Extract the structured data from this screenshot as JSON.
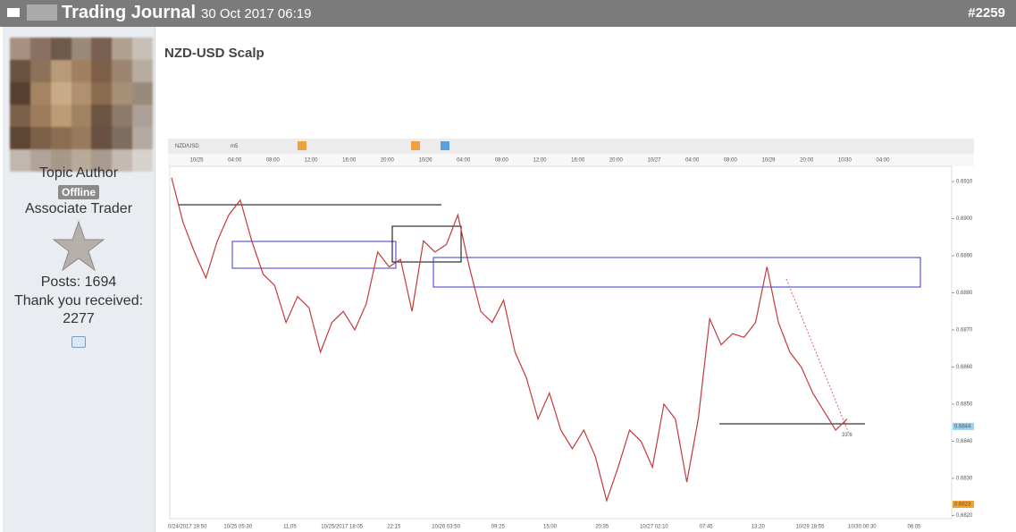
{
  "header": {
    "title": "Trading Journal",
    "date": "30 Oct 2017 06:19",
    "post_number": "#2259"
  },
  "author": {
    "role": "Topic Author",
    "status": "Offline",
    "rank": "Associate Trader",
    "posts": "Posts: 1694",
    "thanks_label": "Thank you received:",
    "thanks": "2277"
  },
  "post": {
    "title": "NZD-USD Scalp",
    "symbol": "NZD/USD",
    "timeframe": "m5"
  },
  "chart_data": {
    "type": "line",
    "color": "#c43a3a",
    "values": [
      0.6911,
      0.6899,
      0.6891,
      0.6884,
      0.6894,
      0.6901,
      0.6905,
      0.6894,
      0.6885,
      0.6882,
      0.6872,
      0.6879,
      0.6876,
      0.6864,
      0.6872,
      0.6875,
      0.687,
      0.6877,
      0.6891,
      0.6887,
      0.6889,
      0.6875,
      0.6894,
      0.6891,
      0.6893,
      0.6901,
      0.6887,
      0.6875,
      0.6872,
      0.6878,
      0.6864,
      0.6857,
      0.6846,
      0.6853,
      0.6843,
      0.6838,
      0.6843,
      0.6836,
      0.6824,
      0.6833,
      0.6843,
      0.684,
      0.6833,
      0.685,
      0.6846,
      0.6829,
      0.6846,
      0.6873,
      0.6866,
      0.6869,
      0.6868,
      0.6872,
      0.6887,
      0.6872,
      0.6864,
      0.686,
      0.6853,
      0.6848,
      0.6843,
      0.6846
    ],
    "ylim": [
      0.68195,
      0.69125
    ],
    "yticks": [
      {
        "value": 0.691,
        "label": "0.6910"
      },
      {
        "value": 0.69,
        "label": "0.6900"
      },
      {
        "value": 0.689,
        "label": "0.6890"
      },
      {
        "value": 0.688,
        "label": "0.6880"
      },
      {
        "value": 0.687,
        "label": "0.6870"
      },
      {
        "value": 0.686,
        "label": "0.6860"
      },
      {
        "value": 0.685,
        "label": "0.6850"
      },
      {
        "value": 0.684,
        "label": "0.6840"
      },
      {
        "value": 0.683,
        "label": "0.6830"
      },
      {
        "value": 0.682,
        "label": "0.6820"
      }
    ],
    "current_price": 0.6844,
    "low_price": 0.6823,
    "end_label": "33.6",
    "top_labels": [
      "10/25",
      "04:00",
      "08:00",
      "12:00",
      "16:00",
      "20:00",
      "10/26",
      "04:00",
      "08:00",
      "12:00",
      "16:00",
      "20:00",
      "10/27",
      "04:00",
      "08:00",
      "10/29",
      "20:00",
      "10/30",
      "04:00"
    ],
    "bottom_labels": [
      "10/24/2017 19:50",
      "10/25 05:30",
      "11:05",
      "10/25/2017 18:05",
      "22:15",
      "10/26 03:50",
      "09:25",
      "15:00",
      "20:35",
      "10/27 02:10",
      "07:45",
      "13:20",
      "10/29 18:55",
      "10/30 00:30",
      "06:05"
    ]
  }
}
